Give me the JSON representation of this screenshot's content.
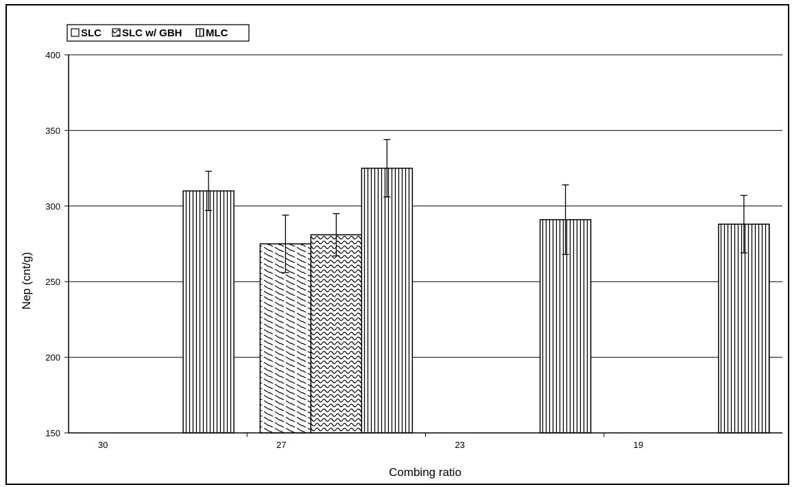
{
  "chart_data": {
    "type": "bar",
    "categories": [
      "30",
      "27",
      "23",
      "19"
    ],
    "series": [
      {
        "name": "SLC",
        "values": [
          null,
          275,
          null,
          null
        ],
        "errors": [
          null,
          19,
          null,
          null
        ],
        "pattern": "diagonal-dash"
      },
      {
        "name": "SLC w/ GBH",
        "values": [
          null,
          281,
          null,
          null
        ],
        "errors": [
          null,
          14,
          null,
          null
        ],
        "pattern": "wave"
      },
      {
        "name": "MLC",
        "values": [
          310,
          325,
          291,
          288
        ],
        "errors": [
          13,
          19,
          23,
          19
        ],
        "pattern": "vertical-lines"
      }
    ],
    "title": "",
    "xlabel": "Combing ratio",
    "ylabel": "Nep (cnt/g)",
    "ylim": [
      150,
      400
    ],
    "yticks": [
      150,
      200,
      250,
      300,
      350,
      400
    ],
    "grid": true,
    "legend_position": "top-left"
  }
}
